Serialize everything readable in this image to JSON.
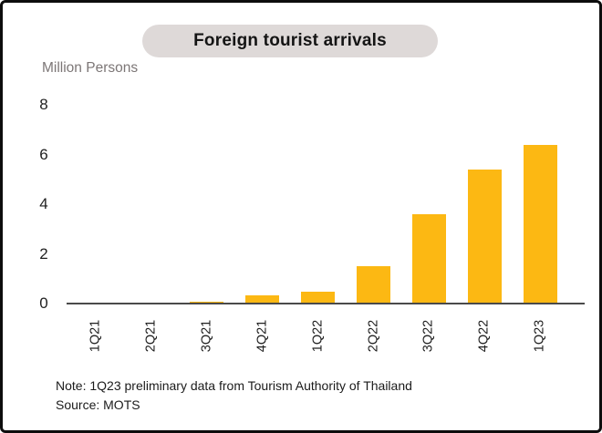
{
  "title": "Foreign tourist arrivals",
  "unit_label": "Million Persons",
  "note": {
    "line1": "Note: 1Q23 preliminary data from Tourism Authority of Thailand",
    "line2": "Source: MOTS"
  },
  "colors": {
    "bar": "#FCB813",
    "title_pill_bg": "#DED9D8",
    "unit_label_text": "#7C7676",
    "axis_line": "#4A4A4A",
    "text": "#1F1F1F",
    "frame_border": "#0D0D0D"
  },
  "chart_data": {
    "type": "bar",
    "title": "Foreign tourist arrivals",
    "categories": [
      "1Q21",
      "2Q21",
      "3Q21",
      "4Q21",
      "1Q22",
      "2Q22",
      "3Q22",
      "4Q22",
      "1Q23"
    ],
    "values": [
      0.02,
      0.02,
      0.06,
      0.32,
      0.48,
      1.5,
      3.6,
      5.4,
      6.4
    ],
    "xlabel": "",
    "ylabel": "Million Persons",
    "ylim": [
      0,
      8
    ],
    "yticks": [
      0,
      2,
      4,
      6,
      8
    ],
    "grid": false,
    "legend": "none",
    "bar_color": "#FCB813",
    "x_tick_rotation_degrees": 90
  }
}
